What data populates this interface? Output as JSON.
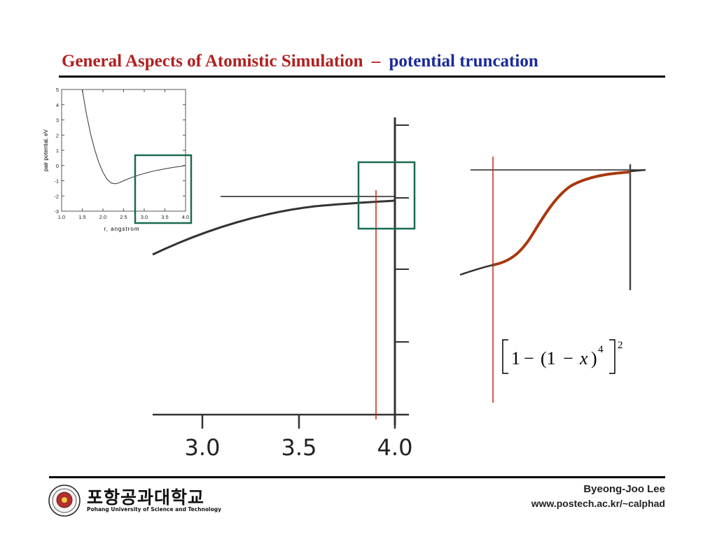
{
  "slide": {
    "title_main": "General Aspects of Atomistic Simulation",
    "title_sep": "–",
    "title_sub": "potential truncation"
  },
  "small_chart": {
    "chart_data": {
      "type": "line",
      "title": "",
      "xlabel": "r, angstrom",
      "ylabel": "pair potential, eV",
      "xlim": [
        1.0,
        4.0
      ],
      "ylim": [
        -3,
        5
      ],
      "x_ticks": [
        "1.0",
        "1.5",
        "2.0",
        "2.5",
        "3.0",
        "3.5",
        "4.0"
      ],
      "y_ticks": [
        "5",
        "4",
        "3",
        "2",
        "1",
        "0",
        "-1",
        "-2",
        "-3"
      ],
      "grid": false,
      "series": [
        {
          "x": [
            1.5,
            1.6,
            1.7,
            1.8,
            1.9,
            2.0,
            2.1,
            2.2,
            2.3,
            2.4,
            2.5,
            2.7,
            2.9,
            3.1,
            3.3,
            3.5,
            3.7,
            3.9,
            4.0
          ],
          "y": [
            5.0,
            3.4,
            2.1,
            1.05,
            0.2,
            -0.45,
            -0.9,
            -1.15,
            -1.2,
            -1.13,
            -1.0,
            -0.78,
            -0.6,
            -0.45,
            -0.32,
            -0.22,
            -0.12,
            -0.05,
            0.0
          ]
        }
      ]
    }
  },
  "zoom_chart": {
    "x_ticks": [
      "3.0",
      "3.5",
      "4.0"
    ]
  },
  "formula": {
    "one_a": "1",
    "minus_a": "−",
    "lparen": "(1",
    "minus_b": "−",
    "x": "x",
    "rparen": ")",
    "exp4": "4",
    "exp2": "2"
  },
  "footer": {
    "author": "Byeong-Joo Lee",
    "url": "www.postech.ac.kr/~calphad",
    "university_kr": "포항공과대학교",
    "university_en": "Pohang University of Science and Technology"
  },
  "colors": {
    "title_red": "#b02020",
    "title_blue": "#1a2a9a",
    "box_green": "#1a6a50",
    "cut_red": "#c0281a",
    "smooth_brown": "#a8380e"
  }
}
